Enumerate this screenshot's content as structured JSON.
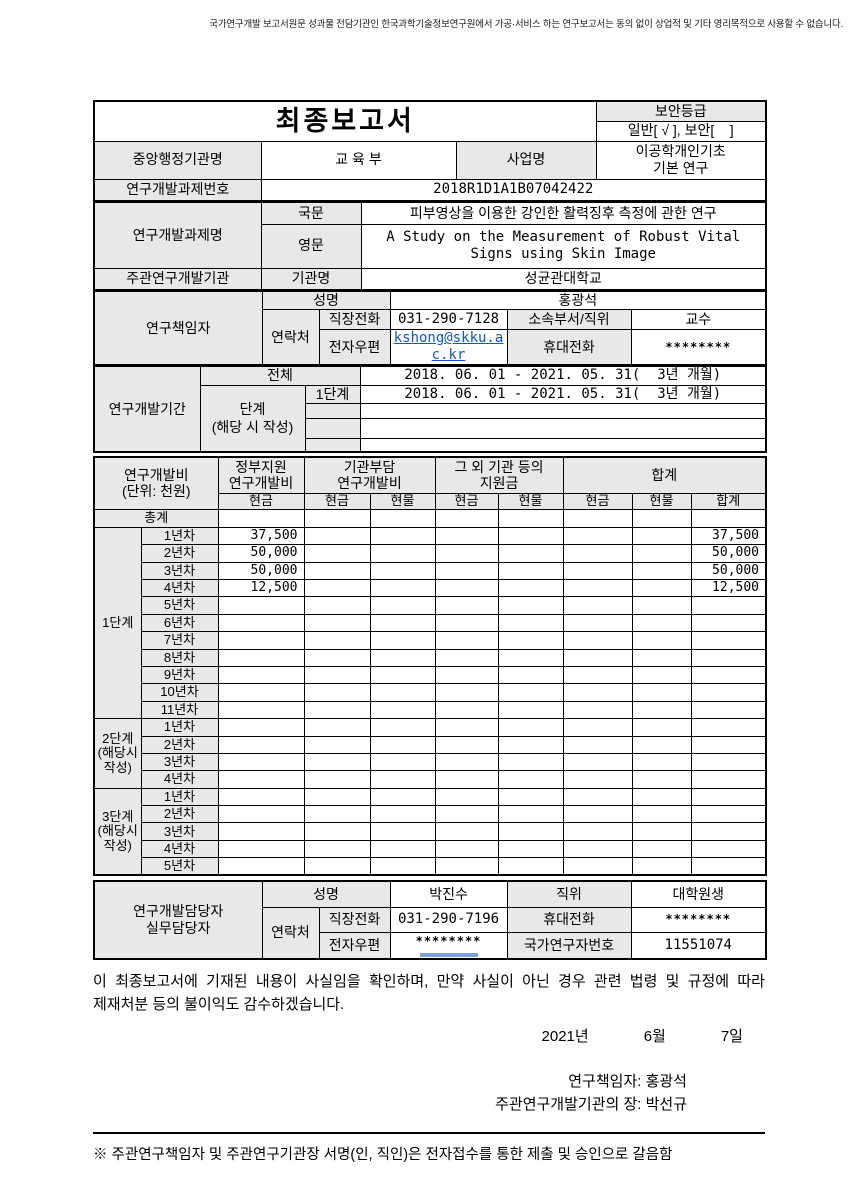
{
  "notice": "국가연구개발 보고서원문 성과물 전담기관인 한국과학기술정보연구원에서 가공·서비스 하는 연구보고서는 동의 없이 상업적 및 기타 영리목적으로 사용할 수 없습니다.",
  "header": {
    "title": "최종보고서",
    "security_label": "보안등급",
    "security_value": "일반[ √ ], 보안[    ]",
    "agency_label": "중앙행정기관명",
    "agency_value": "교 육 부",
    "program_label": "사업명",
    "program_value": "이공학개인기초\n기본 연구",
    "project_no_label": "연구개발과제번호",
    "project_no_value": "2018R1D1A1B07042422"
  },
  "project": {
    "title_label": "연구개발과제명",
    "kor_label": "국문",
    "kor_value": "피부영상을 이용한 강인한 활력징후 측정에 관한 연구",
    "eng_label": "영문",
    "eng_value": "A Study on the Measurement of Robust Vital Signs using Skin Image",
    "org_label": "주관연구개발기관",
    "org_name_label": "기관명",
    "org_name_value": "성균관대학교"
  },
  "pi": {
    "label": "연구책임자",
    "name_label": "성명",
    "name_value": "홍광석",
    "contact_label": "연락처",
    "phone_label": "직장전화",
    "phone_value": "031-290-7128",
    "dept_label": "소속부서/직위",
    "dept_value": "교수",
    "email_label": "전자우편",
    "email_value": "kshong@skku.ac.kr",
    "mobile_label": "휴대전화",
    "mobile_value": "********"
  },
  "period": {
    "label": "연구개발기간",
    "total_label": "전체",
    "total_value": "2018. 06. 01 - 2021. 05. 31(  3년 개월)",
    "stage_label": "단계\n(해당 시 작성)",
    "stage1_label": "1단계",
    "stage1_value": "2018. 06. 01 - 2021. 05. 31(  3년 개월)"
  },
  "budget": {
    "label": "연구개발비\n(단위: 천원)",
    "groups": [
      "정부지원\n연구개발비",
      "기관부담\n연구개발비",
      "그 외 기관 등의\n지원금",
      "합계"
    ],
    "sub_headers": [
      "현금",
      "현금",
      "현물",
      "현금",
      "현물",
      "현금",
      "현물",
      "합계"
    ],
    "total_label": "총계",
    "stages": [
      {
        "label": "1단계",
        "rows": [
          {
            "year": "1년차",
            "cells": [
              "37,500",
              "",
              "",
              "",
              "",
              "",
              "",
              "37,500"
            ]
          },
          {
            "year": "2년차",
            "cells": [
              "50,000",
              "",
              "",
              "",
              "",
              "",
              "",
              "50,000"
            ]
          },
          {
            "year": "3년차",
            "cells": [
              "50,000",
              "",
              "",
              "",
              "",
              "",
              "",
              "50,000"
            ]
          },
          {
            "year": "4년차",
            "cells": [
              "12,500",
              "",
              "",
              "",
              "",
              "",
              "",
              "12,500"
            ]
          },
          {
            "year": "5년차",
            "cells": [
              "",
              "",
              "",
              "",
              "",
              "",
              "",
              ""
            ]
          },
          {
            "year": "6년차",
            "cells": [
              "",
              "",
              "",
              "",
              "",
              "",
              "",
              ""
            ]
          },
          {
            "year": "7년차",
            "cells": [
              "",
              "",
              "",
              "",
              "",
              "",
              "",
              ""
            ]
          },
          {
            "year": "8년차",
            "cells": [
              "",
              "",
              "",
              "",
              "",
              "",
              "",
              ""
            ]
          },
          {
            "year": "9년차",
            "cells": [
              "",
              "",
              "",
              "",
              "",
              "",
              "",
              ""
            ]
          },
          {
            "year": "10년차",
            "cells": [
              "",
              "",
              "",
              "",
              "",
              "",
              "",
              ""
            ]
          },
          {
            "year": "11년차",
            "cells": [
              "",
              "",
              "",
              "",
              "",
              "",
              "",
              ""
            ]
          }
        ]
      },
      {
        "label": "2단계\n(해당시\n작성)",
        "rows": [
          {
            "year": "1년차",
            "cells": [
              "",
              "",
              "",
              "",
              "",
              "",
              "",
              ""
            ]
          },
          {
            "year": "2년차",
            "cells": [
              "",
              "",
              "",
              "",
              "",
              "",
              "",
              ""
            ]
          },
          {
            "year": "3년차",
            "cells": [
              "",
              "",
              "",
              "",
              "",
              "",
              "",
              ""
            ]
          },
          {
            "year": "4년차",
            "cells": [
              "",
              "",
              "",
              "",
              "",
              "",
              "",
              ""
            ]
          }
        ]
      },
      {
        "label": "3단계\n(해당시\n작성)",
        "rows": [
          {
            "year": "1년차",
            "cells": [
              "",
              "",
              "",
              "",
              "",
              "",
              "",
              ""
            ]
          },
          {
            "year": "2년차",
            "cells": [
              "",
              "",
              "",
              "",
              "",
              "",
              "",
              ""
            ]
          },
          {
            "year": "3년차",
            "cells": [
              "",
              "",
              "",
              "",
              "",
              "",
              "",
              ""
            ]
          },
          {
            "year": "4년차",
            "cells": [
              "",
              "",
              "",
              "",
              "",
              "",
              "",
              ""
            ]
          },
          {
            "year": "5년차",
            "cells": [
              "",
              "",
              "",
              "",
              "",
              "",
              "",
              ""
            ]
          }
        ]
      }
    ]
  },
  "staff": {
    "label": "연구개발담당자\n실무담당자",
    "name_label": "성명",
    "name_value": "박진수",
    "position_label": "직위",
    "position_value": "대학원생",
    "contact_label": "연락처",
    "phone_label": "직장전화",
    "phone_value": "031-290-7196",
    "mobile_label": "휴대전화",
    "mobile_value": "********",
    "email_label": "전자우편",
    "email_value": "********",
    "researcher_no_label": "국가연구자번호",
    "researcher_no_value": "11551074"
  },
  "declaration": {
    "text": "이 최종보고서에 기재된 내용이 사실임을 확인하며, 만약 사실이 아닌 경우 관련 법령 및 규정에 따라 제재처분 등의 불이익도 감수하겠습니다.",
    "date_year": "2021년",
    "date_month": "6월",
    "date_day": "7일",
    "sign1": "연구책임자: 홍광석",
    "sign2": "주관연구개발기관의 장: 박선규",
    "footnote": "※ 주관연구책임자 및 주관연구기관장 서명(인, 직인)은 전자접수를 통한 제출 및 승인으로 갈음함"
  }
}
